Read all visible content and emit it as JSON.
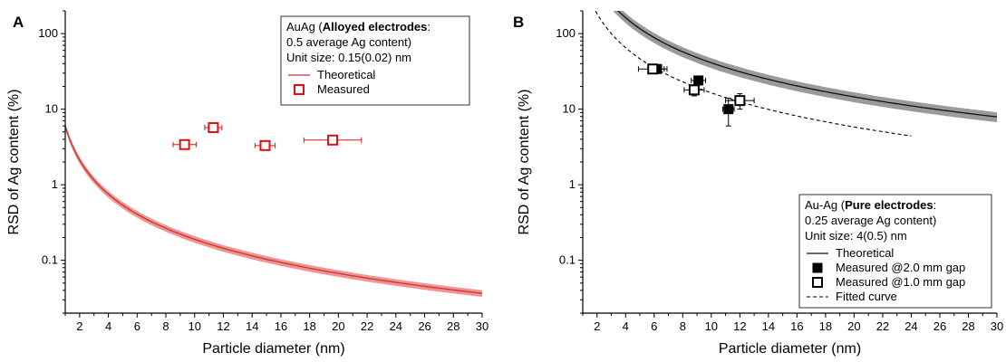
{
  "chart_data": [
    {
      "panel": "A",
      "type": "line",
      "xlabel": "Particle diameter (nm)",
      "ylabel": "RSD of Ag content (%)",
      "xlim": [
        1,
        30
      ],
      "ylim": [
        0.02,
        200
      ],
      "yscale": "log",
      "xticks": [
        2,
        4,
        6,
        8,
        10,
        12,
        14,
        16,
        18,
        20,
        22,
        24,
        26,
        28,
        30
      ],
      "yticks": [
        0.1,
        1,
        10,
        100
      ],
      "ytick_labels": [
        "0.1",
        "1",
        "10",
        "100"
      ],
      "legend": {
        "placement": "top-right",
        "title_prefix": "AuAg (",
        "title_bold": "Alloyed electrodes",
        "title_suffix": ":",
        "line2": "0.5 average Ag content)",
        "line3": "Unit size: 0.15(0.02) nm",
        "entries": [
          "Theoretical",
          "Measured"
        ]
      },
      "series": [
        {
          "name": "Theoretical",
          "kind": "curve",
          "color": "#c0392b",
          "band_color": "#f08080",
          "model": "y = 6.0 / x^1.5",
          "band_fraction": 0.1
        },
        {
          "name": "Measured",
          "kind": "scatter",
          "color": "#e01010",
          "marker": "open-square",
          "points": [
            {
              "x": 9.3,
              "y": 3.4,
              "xerr": 0.8,
              "yerr": 0.35
            },
            {
              "x": 11.3,
              "y": 5.7,
              "xerr": 0.6,
              "yerr": 0.7
            },
            {
              "x": 14.9,
              "y": 3.3,
              "xerr": 0.7,
              "yerr": 0.35
            },
            {
              "x": 19.6,
              "y": 3.9,
              "xerr": 2.0,
              "yerr": 0.4
            }
          ]
        }
      ]
    },
    {
      "panel": "B",
      "type": "line",
      "xlabel": "Particle diameter (nm)",
      "ylabel": "RSD of Ag content (%)",
      "xlim": [
        1,
        30
      ],
      "ylim": [
        0.02,
        200
      ],
      "yscale": "log",
      "xticks": [
        2,
        4,
        6,
        8,
        10,
        12,
        14,
        16,
        18,
        20,
        22,
        24,
        26,
        28,
        30
      ],
      "yticks": [
        0.1,
        1,
        10,
        100
      ],
      "ytick_labels": [
        "0.1",
        "1",
        "10",
        "100"
      ],
      "legend": {
        "placement": "bottom-right",
        "title_prefix": "Au-Ag (",
        "title_bold": "Pure electrodes",
        "title_suffix": ":",
        "line2": "0.25 average Ag content)",
        "line3": "Unit size: 4(0.5) nm",
        "entries": [
          "Theoretical",
          "Measured @2.0 mm gap",
          "Measured @1.0 mm gap",
          "Fitted curve"
        ]
      },
      "series": [
        {
          "name": "Theoretical",
          "kind": "curve",
          "color": "#111111",
          "band_color": "#888888",
          "model": "y = 1300 / x^1.5",
          "band_fraction": 0.15
        },
        {
          "name": "Measured @2.0 mm gap",
          "kind": "scatter",
          "color": "#000000",
          "marker": "filled-square",
          "points": [
            {
              "x": 6.2,
              "y": 34,
              "xerr": 0.5,
              "yerr": 4
            },
            {
              "x": 9.1,
              "y": 24,
              "xerr": 0.5,
              "yerr": 3
            },
            {
              "x": 11.2,
              "y": 10,
              "xerr": 0.4,
              "yerr": 4
            }
          ]
        },
        {
          "name": "Measured @1.0 mm gap",
          "kind": "scatter",
          "color": "#000000",
          "marker": "open-square",
          "points": [
            {
              "x": 5.9,
              "y": 34,
              "xerr": 1.0,
              "yerr": 4
            },
            {
              "x": 8.8,
              "y": 18,
              "xerr": 0.7,
              "yerr": 3
            },
            {
              "x": 12.0,
              "y": 13,
              "xerr": 1.0,
              "yerr": 3
            }
          ]
        },
        {
          "name": "Fitted curve",
          "kind": "fit",
          "color": "#000000",
          "style": "dashed",
          "model": "y = 520 / x^1.5",
          "x_range": [
            1.9,
            24
          ]
        }
      ]
    }
  ]
}
